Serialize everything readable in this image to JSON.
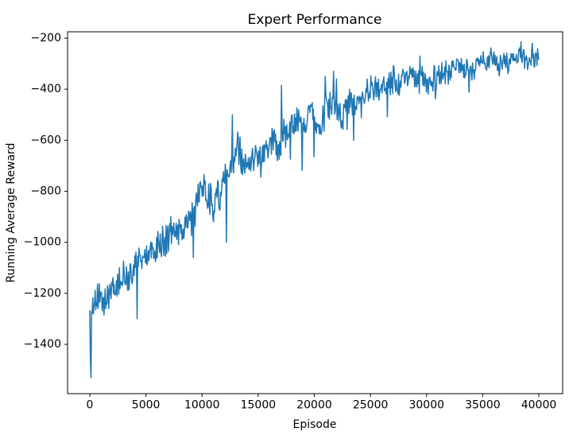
{
  "chart_data": {
    "type": "line",
    "title": "Expert Performance",
    "xlabel": "Episode",
    "ylabel": "Running Average Reward",
    "grid": false,
    "legend": null,
    "background_color": "#ffffff",
    "spine_color": "#000000",
    "line_color": "#1f77b4",
    "line_width": 1.5,
    "x_data_range": [
      0,
      40000
    ],
    "xlim": [
      -2000,
      42150
    ],
    "ylim": [
      -1593,
      -175
    ],
    "xticks": {
      "values": [
        0,
        5000,
        10000,
        15000,
        20000,
        25000,
        30000,
        35000,
        40000
      ],
      "labels": [
        "0",
        "5000",
        "10000",
        "15000",
        "20000",
        "25000",
        "30000",
        "35000",
        "40000"
      ]
    },
    "yticks": {
      "values": [
        -200,
        -400,
        -600,
        -800,
        -1000,
        -1200,
        -1400
      ],
      "labels": [
        "−200",
        "−400",
        "−600",
        "−800",
        "−1000",
        "−1200",
        "−1400"
      ]
    },
    "series": [
      {
        "name": "running-average-reward",
        "n_points": 760,
        "seed": 5,
        "start_value": -1268,
        "end_value": -283,
        "min_value": -1531,
        "max_value": -212,
        "trend_points": [
          [
            0,
            -1268
          ],
          [
            300,
            -1255
          ],
          [
            800,
            -1215
          ],
          [
            1200,
            -1245
          ],
          [
            1600,
            -1215
          ],
          [
            2000,
            -1190
          ],
          [
            2500,
            -1165
          ],
          [
            3000,
            -1130
          ],
          [
            3400,
            -1150
          ],
          [
            4000,
            -1085
          ],
          [
            4600,
            -1055
          ],
          [
            5200,
            -1025
          ],
          [
            5800,
            -1035
          ],
          [
            6400,
            -1000
          ],
          [
            7000,
            -975
          ],
          [
            7600,
            -955
          ],
          [
            8200,
            -930
          ],
          [
            8800,
            -905
          ],
          [
            9400,
            -860
          ],
          [
            10000,
            -805
          ],
          [
            10600,
            -840
          ],
          [
            11200,
            -825
          ],
          [
            11800,
            -770
          ],
          [
            12400,
            -730
          ],
          [
            13000,
            -675
          ],
          [
            13600,
            -700
          ],
          [
            14200,
            -660
          ],
          [
            14800,
            -630
          ],
          [
            15400,
            -645
          ],
          [
            16000,
            -600
          ],
          [
            16600,
            -575
          ],
          [
            17200,
            -560
          ],
          [
            17800,
            -545
          ],
          [
            18400,
            -515
          ],
          [
            19000,
            -555
          ],
          [
            19600,
            -515
          ],
          [
            20200,
            -500
          ],
          [
            20800,
            -478
          ],
          [
            21400,
            -452
          ],
          [
            22000,
            -458
          ],
          [
            22600,
            -448
          ],
          [
            23200,
            -432
          ],
          [
            23800,
            -424
          ],
          [
            24400,
            -408
          ],
          [
            25000,
            -396
          ],
          [
            25600,
            -386
          ],
          [
            26200,
            -392
          ],
          [
            26800,
            -378
          ],
          [
            27400,
            -380
          ],
          [
            28000,
            -370
          ],
          [
            28600,
            -366
          ],
          [
            29200,
            -358
          ],
          [
            29800,
            -350
          ],
          [
            30400,
            -366
          ],
          [
            31000,
            -352
          ],
          [
            31600,
            -340
          ],
          [
            32200,
            -332
          ],
          [
            32800,
            -324
          ],
          [
            33400,
            -318
          ],
          [
            34000,
            -310
          ],
          [
            34600,
            -302
          ],
          [
            35200,
            -304
          ],
          [
            35800,
            -296
          ],
          [
            36400,
            -300
          ],
          [
            37000,
            -290
          ],
          [
            37600,
            -288
          ],
          [
            38200,
            -280
          ],
          [
            38800,
            -278
          ],
          [
            39400,
            -272
          ],
          [
            40000,
            -283
          ]
        ],
        "noise_amplitude": [
          [
            0,
            55
          ],
          [
            2000,
            62
          ],
          [
            6000,
            68
          ],
          [
            12000,
            72
          ],
          [
            18000,
            74
          ],
          [
            22000,
            66
          ],
          [
            26000,
            60
          ],
          [
            30000,
            54
          ],
          [
            34000,
            48
          ],
          [
            38000,
            44
          ],
          [
            40000,
            42
          ]
        ],
        "spikes": [
          [
            60,
            -1460
          ],
          [
            110,
            -1531
          ],
          [
            4200,
            -1300
          ],
          [
            9200,
            -1060
          ],
          [
            12200,
            -1000
          ],
          [
            12700,
            -500
          ],
          [
            16700,
            -680
          ],
          [
            17100,
            -385
          ],
          [
            17850,
            -674
          ],
          [
            18900,
            -718
          ],
          [
            19950,
            -665
          ],
          [
            21000,
            -350
          ],
          [
            21700,
            -330
          ],
          [
            22000,
            -360
          ],
          [
            22900,
            -558
          ],
          [
            23500,
            -600
          ],
          [
            24200,
            -512
          ],
          [
            26500,
            -508
          ],
          [
            29400,
            -270
          ],
          [
            30800,
            -438
          ],
          [
            33800,
            -412
          ],
          [
            38400,
            -214
          ],
          [
            39400,
            -220
          ],
          [
            40000,
            -283
          ]
        ]
      }
    ]
  }
}
